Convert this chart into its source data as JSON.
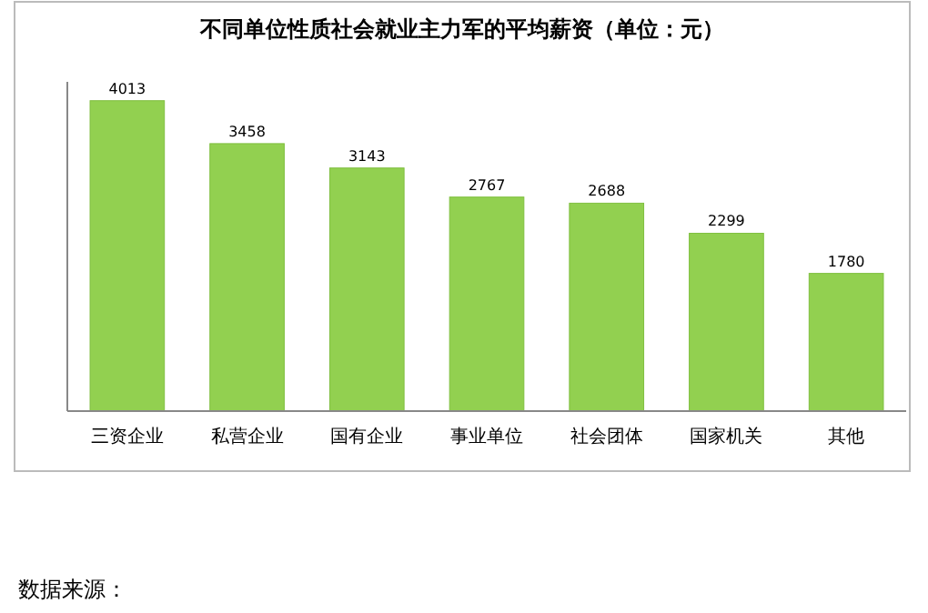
{
  "chart_data": {
    "type": "bar",
    "title": "不同单位性质社会就业主力军的平均薪资（单位：元）",
    "categories": [
      "三资企业",
      "私营企业",
      "国有企业",
      "事业单位",
      "社会团体",
      "国家机关",
      "其他"
    ],
    "values": [
      4013,
      3458,
      3143,
      2767,
      2688,
      2299,
      1780
    ],
    "color": "#92d050",
    "data_labels": true,
    "annotations": [
      "数据来源："
    ]
  }
}
